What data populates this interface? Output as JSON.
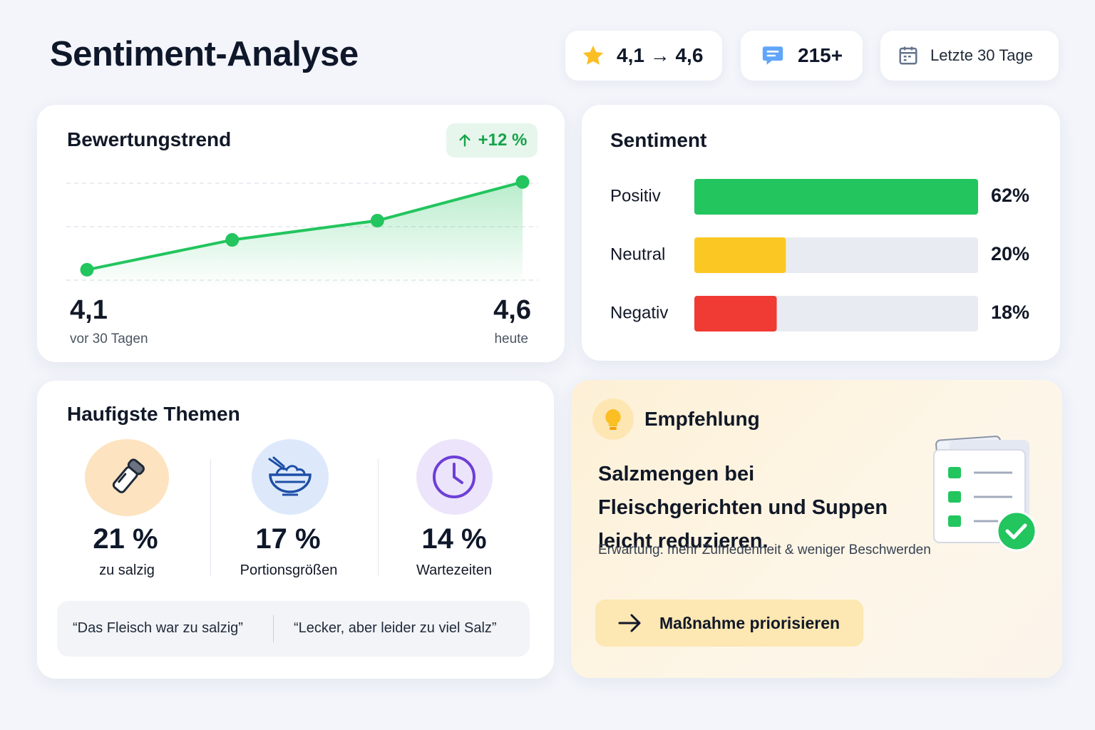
{
  "header": {
    "title": "Sentiment-Analyse",
    "badges": [
      "4,1 → 4,6",
      "215+",
      "Letzte 30 Tage"
    ]
  },
  "chart_data": [
    {
      "type": "line",
      "title": "Bewertungstrend",
      "annotation": "+12 %",
      "categories": [
        "vor 30 Tagen",
        null,
        null,
        "heute"
      ],
      "values": [
        4.1,
        4.27,
        4.38,
        4.6
      ],
      "value_labels": [
        "4,1",
        null,
        null,
        "4,6"
      ],
      "color": "#22c55e",
      "ylim": [
        4.0,
        4.65
      ]
    },
    {
      "type": "bar",
      "orientation": "horizontal",
      "title": "Sentiment",
      "categories": [
        "Positiv",
        "Neutral",
        "Negativ"
      ],
      "values": [
        62,
        20,
        18
      ],
      "value_labels": [
        "62%",
        "20%",
        "18%"
      ],
      "colors": [
        "#22c55e",
        "#fbc723",
        "#ef3b33"
      ],
      "xlim": [
        0,
        62
      ]
    }
  ],
  "themes": {
    "title": "Haufigste Themen",
    "items": [
      {
        "share": "21 %",
        "label": "zu salzig"
      },
      {
        "share": "17 %",
        "label": "Portionsgrößen"
      },
      {
        "share": "14 %",
        "label": "Wartezeiten"
      }
    ],
    "quotes": [
      "“Das Fleisch war zu salzig”",
      "“Lecker, aber leider zu viel Salz”"
    ]
  },
  "recommendation": {
    "title": "Empfehlung",
    "text": "Salzmengen bei Fleischgerichten und Suppen leicht reduzieren.",
    "note": "Erwartung: mehr Zufriedenheit & weniger Beschwerden",
    "button": "Maßnahme priorisieren"
  }
}
